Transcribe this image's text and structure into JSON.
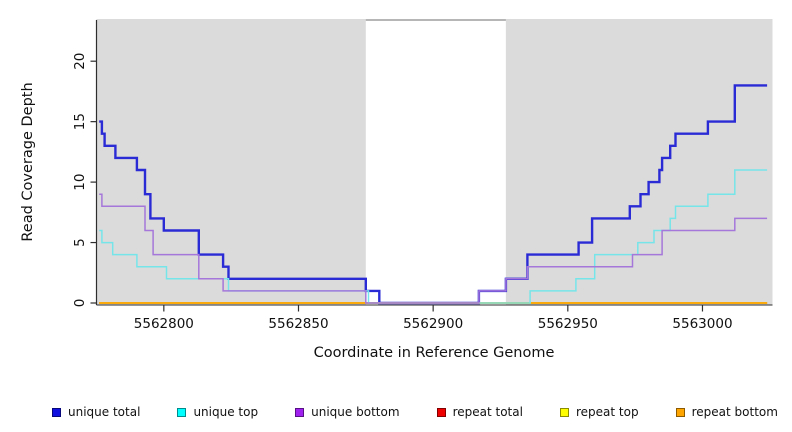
{
  "chart_data": {
    "type": "line",
    "subtype": "step",
    "title": "",
    "xlabel": "Coordinate in Reference Genome",
    "ylabel": "Read Coverage Depth",
    "xlim": [
      5562775,
      5563026
    ],
    "ylim": [
      0,
      23.4
    ],
    "xticks": [
      5562800,
      5562850,
      5562900,
      5562950,
      5563000
    ],
    "yticks": [
      0,
      5,
      10,
      15,
      20
    ],
    "grid": false,
    "legend_position": "bottom",
    "shaded_regions": [
      {
        "x0": 5562775,
        "x1": 5562875,
        "color": "#DBDBDB"
      },
      {
        "x0": 5562927,
        "x1": 5563026,
        "color": "#DBDBDB"
      }
    ],
    "series": [
      {
        "name": "unique total",
        "color": "#2B2BD6",
        "legend_color": "#1010E0",
        "width": 2.4,
        "end": 5563024,
        "points": [
          [
            5562776,
            15
          ],
          [
            5562777,
            14
          ],
          [
            5562778,
            13
          ],
          [
            5562782,
            12
          ],
          [
            5562790,
            11
          ],
          [
            5562793,
            9
          ],
          [
            5562795,
            7
          ],
          [
            5562800,
            6
          ],
          [
            5562813,
            4
          ],
          [
            5562822,
            3
          ],
          [
            5562824,
            2
          ],
          [
            5562875,
            1
          ],
          [
            5562880,
            0
          ],
          [
            5562917,
            1
          ],
          [
            5562927,
            2
          ],
          [
            5562935,
            4
          ],
          [
            5562954,
            5
          ],
          [
            5562959,
            7
          ],
          [
            5562973,
            8
          ],
          [
            5562977,
            9
          ],
          [
            5562980,
            10
          ],
          [
            5562984,
            11
          ],
          [
            5562985,
            12
          ],
          [
            5562988,
            13
          ],
          [
            5562990,
            14
          ],
          [
            5563002,
            15
          ],
          [
            5563012,
            18
          ]
        ]
      },
      {
        "name": "repeat total",
        "color": "#E00000",
        "legend_color": "#EE0000",
        "width": 1.4,
        "end": 5563024,
        "points": [
          [
            5562776,
            0
          ]
        ]
      },
      {
        "name": "repeat top",
        "color": "#FFFF00",
        "legend_color": "#FFFF00",
        "width": 1.4,
        "end": 5563024,
        "points": [
          [
            5562776,
            0
          ]
        ]
      },
      {
        "name": "repeat bottom",
        "color": "#FFA500",
        "legend_color": "#FFA500",
        "width": 1.6,
        "end": 5563024,
        "points": [
          [
            5562776,
            0
          ]
        ]
      },
      {
        "name": "unique top",
        "color": "#76E5E9",
        "legend_color": "#00FFFF",
        "width": 1.5,
        "end": 5563024,
        "points": [
          [
            5562776,
            6
          ],
          [
            5562777,
            5
          ],
          [
            5562781,
            4
          ],
          [
            5562790,
            3
          ],
          [
            5562801,
            2
          ],
          [
            5562824,
            1
          ],
          [
            5562876,
            0
          ],
          [
            5562936,
            1
          ],
          [
            5562953,
            2
          ],
          [
            5562960,
            4
          ],
          [
            5562976,
            5
          ],
          [
            5562982,
            6
          ],
          [
            5562988,
            7
          ],
          [
            5562990,
            8
          ],
          [
            5563002,
            9
          ],
          [
            5563012,
            11
          ]
        ]
      },
      {
        "name": "unique bottom",
        "color": "#A577DA",
        "legend_color": "#A020F0",
        "width": 1.5,
        "end": 5563024,
        "points": [
          [
            5562776,
            9
          ],
          [
            5562777,
            8
          ],
          [
            5562793,
            6
          ],
          [
            5562796,
            4
          ],
          [
            5562813,
            2
          ],
          [
            5562822,
            1
          ],
          [
            5562875,
            0
          ],
          [
            5562917,
            1
          ],
          [
            5562927,
            2
          ],
          [
            5562935,
            3
          ],
          [
            5562974,
            4
          ],
          [
            5562985,
            6
          ],
          [
            5563012,
            7
          ]
        ]
      }
    ],
    "legend_order": [
      "unique total",
      "unique top",
      "unique bottom",
      "repeat total",
      "repeat top",
      "repeat bottom"
    ]
  },
  "colors": {
    "shaded_band": "#DBDBDB",
    "axis_line": "#2E2E2E",
    "top_border": "#8A8A8A",
    "background": "#FFFFFF"
  }
}
